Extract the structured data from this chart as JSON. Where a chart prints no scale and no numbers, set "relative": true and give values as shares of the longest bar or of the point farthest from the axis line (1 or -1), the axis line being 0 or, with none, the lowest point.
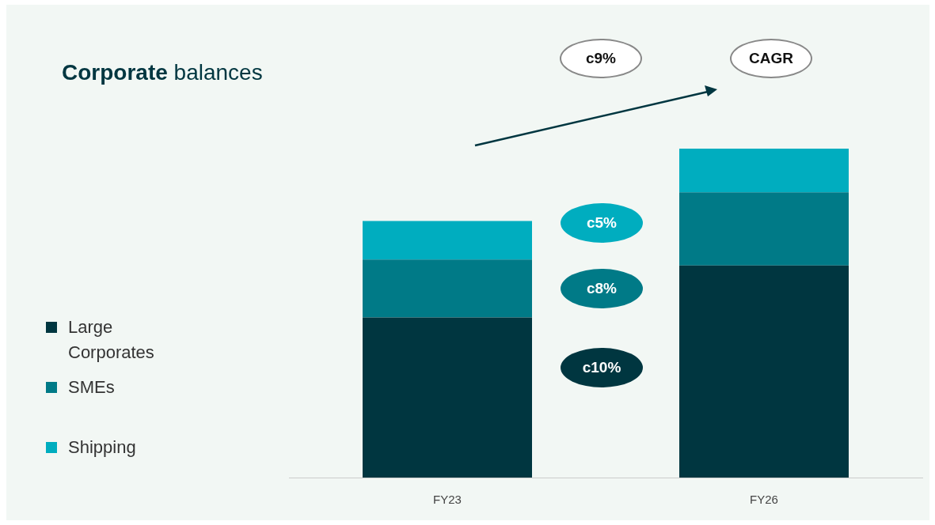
{
  "chart_data": {
    "type": "bar",
    "title": "Corporate balances",
    "categories": [
      "FY23",
      "FY26"
    ],
    "stacked": true,
    "relative": true,
    "legend": "left",
    "grid": false,
    "series": [
      {
        "name": "Large Corporates",
        "color": "#003640",
        "values": [
          0.487,
          0.645
        ]
      },
      {
        "name": "SMEs",
        "color": "#007a87",
        "values": [
          0.176,
          0.222
        ]
      },
      {
        "name": "Shipping",
        "color": "#00adbf",
        "values": [
          0.117,
          0.133
        ]
      }
    ],
    "annotations": [
      "c9%",
      "CAGR",
      "c5%",
      "c8%",
      "c10%"
    ]
  }
}
